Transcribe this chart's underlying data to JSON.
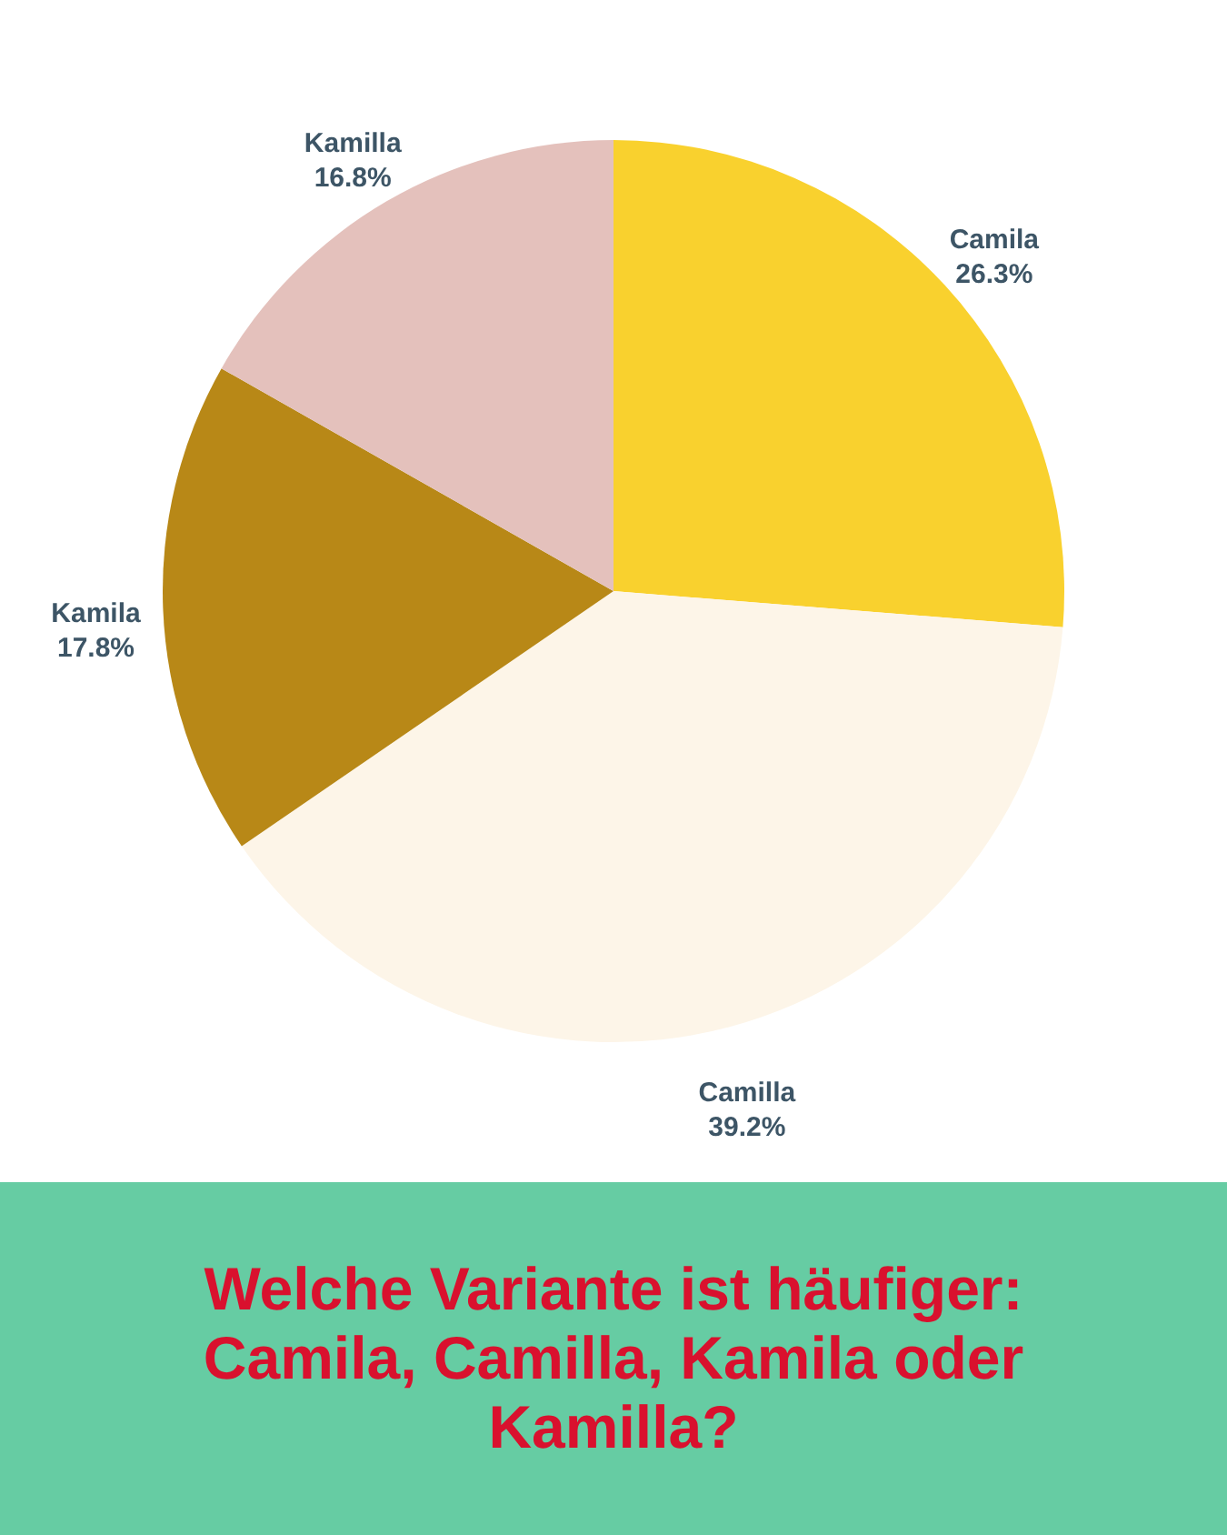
{
  "chart_data": {
    "type": "pie",
    "title": "Welche Variante ist häufiger: Camila, Camilla, Kamila oder Kamilla?",
    "categories": [
      "Camila",
      "Camilla",
      "Kamila",
      "Kamilla"
    ],
    "values": [
      26.3,
      39.2,
      17.8,
      16.8
    ],
    "value_labels": [
      "26.3%",
      "39.2%",
      "17.8%",
      "16.8%"
    ],
    "colors": [
      "#f9d12e",
      "#fdf5e8",
      "#b88817",
      "#e4c1bc"
    ]
  }
}
